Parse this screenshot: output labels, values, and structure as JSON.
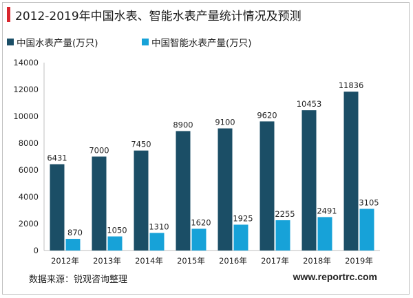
{
  "title": "2012-2019年中国水表、智能水表产量统计情况及预测",
  "source": "数据来源：锐观咨询整理",
  "website": "www.reportrc.com",
  "colors": {
    "series1": "#1b4e66",
    "series2": "#17a2d8",
    "title_accent": "#d9262e"
  },
  "chart_data": {
    "type": "bar",
    "title": "2012-2019年中国水表、智能水表产量统计情况及预测",
    "categories": [
      "2012年",
      "2013年",
      "2014年",
      "2015年",
      "2016年",
      "2017年",
      "2018年",
      "2019年"
    ],
    "series": [
      {
        "name": "中国水表产量(万只)",
        "values": [
          6431,
          7000,
          7450,
          8900,
          9100,
          9620,
          10453,
          11836
        ]
      },
      {
        "name": "中国智能水表产量(万只)",
        "values": [
          870,
          1050,
          1310,
          1620,
          1925,
          2255,
          2491,
          3105
        ]
      }
    ],
    "ylim": [
      0,
      14000
    ],
    "yticks": [
      0,
      2000,
      4000,
      6000,
      8000,
      10000,
      12000,
      14000
    ],
    "grid": false,
    "legend": "top-left"
  }
}
